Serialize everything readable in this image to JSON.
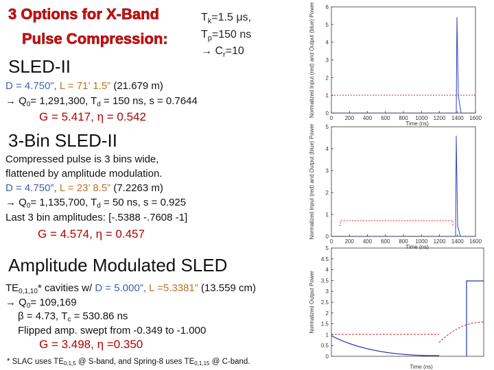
{
  "header": {
    "title": [
      "3 Options for X-Band",
      "Pulse Compression:"
    ],
    "params": [
      [
        "T",
        "k",
        "=1.5 μs,"
      ],
      [
        "T",
        "p",
        "=150 ns"
      ],
      [
        "→ C",
        "r",
        "=10"
      ]
    ]
  },
  "sled2": {
    "heading": "SLED-II",
    "dims": [
      "D = 4.750”,",
      "L = 71’ 1.5”",
      "(21.679 m)"
    ],
    "q": [
      "→ Q",
      "0",
      "= 1,291,300,  T",
      "d",
      " = 150 ns,  s = 0.7644"
    ],
    "result": "G = 5.417,  η = 0.542"
  },
  "bin3": {
    "heading": "3-Bin SLED-II",
    "desc": [
      "Compressed pulse is 3 bins wide,",
      "flattened by amplitude modulation."
    ],
    "dims": [
      "D = 4.750”,",
      "L = 23’ 8.5”",
      "(7.2263 m)"
    ],
    "q": [
      "→ Q",
      "0",
      "= 1,135,700,  T",
      "d",
      " = 50 ns,  s = 0.925"
    ],
    "amps": "Last 3 bin amplitudes: [-.5388  -.7608  -1]",
    "result": "G = 4.574,  η = 0.457"
  },
  "am": {
    "heading": "Amplitude Modulated SLED",
    "cav": [
      "TE",
      "0,1,10",
      "* cavities w/",
      "D = 5.000”,",
      "L =5.3381”",
      "(13.559 cm)"
    ],
    "q": [
      "→ Q",
      "0",
      "= 109,169"
    ],
    "beta": [
      "β = 4.73, T",
      "c",
      " = 530.86 ns"
    ],
    "flip": "Flipped amp. swept from  -0.349 to -1.000",
    "result": "G = 3.498,  η =0.350"
  },
  "footnote": [
    "* SLAC uses TE",
    "0,1,5",
    " @ S-band, and Spring-8 uses TE",
    "0,1,15",
    " @ C-band."
  ],
  "plots": [
    {
      "yticks": [
        0,
        1,
        2,
        3,
        4,
        5,
        6
      ],
      "xticks": [
        0,
        200,
        400,
        600,
        800,
        1000,
        1200,
        1400,
        1600
      ],
      "xlabel": "Time (ns)",
      "ylabel": "Normalized Input (red) and Output (blue) Power"
    },
    {
      "yticks": [
        0,
        1,
        2,
        3,
        4,
        5
      ],
      "xticks": [
        0,
        200,
        400,
        600,
        800,
        1000,
        1200,
        1400,
        1600
      ],
      "xlabel": "Time (ns)",
      "ylabel": "Normalized Input (red) and Output (blue) Power"
    },
    {
      "yticks": [
        0,
        0.5,
        1,
        1.5,
        2,
        2.5,
        3,
        3.5,
        4,
        4.5,
        5
      ],
      "xlabel": "Time (ns)",
      "ylabel": "Normalized Output Power"
    }
  ]
}
